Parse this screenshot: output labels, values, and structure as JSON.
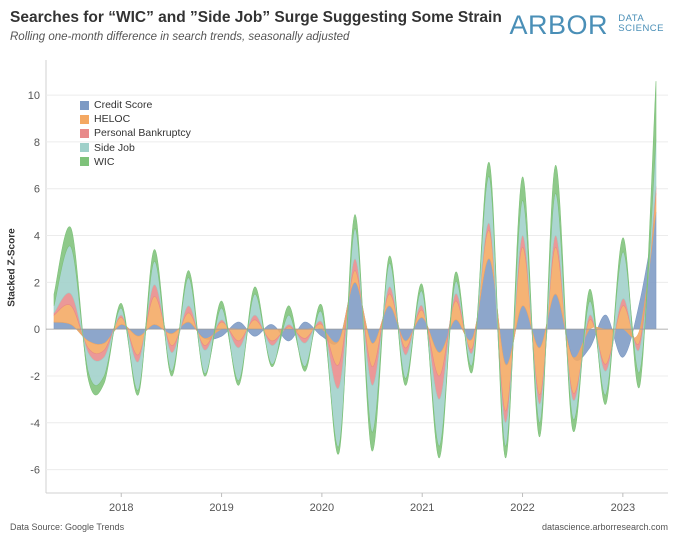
{
  "title": "Searches for “WIC” and  ”Side Job” Surge Suggesting Some Strain",
  "subtitle": "Rolling one-month difference in search trends, seasonally adjusted",
  "logo": {
    "main": "ARBOR",
    "sub_line1": "DATA",
    "sub_line2": "SCIENCE"
  },
  "footer": {
    "source": "Data Source: Google Trends",
    "url": "datascience.arborresearch.com"
  },
  "colors": {
    "credit_score": "#7d9ac4",
    "heloc": "#f4a862",
    "personal_bankruptcy": "#e88a8a",
    "side_job": "#9fd0c9",
    "wic": "#7ec27a"
  },
  "chart_data": {
    "type": "area",
    "stacked": true,
    "title": "Searches for “WIC” and  ”Side Job” Surge Suggesting Some Strain",
    "xlabel": "",
    "ylabel": "Stacked Z-Score",
    "xlim": [
      2017.25,
      2023.45
    ],
    "ylim": [
      -7,
      11.5
    ],
    "x_ticks": [
      2018,
      2019,
      2020,
      2021,
      2022,
      2023
    ],
    "x_tick_labels": [
      "2018",
      "2019",
      "2020",
      "2021",
      "2022",
      "2023"
    ],
    "y_ticks": [
      -6,
      -4,
      -2,
      0,
      2,
      4,
      6,
      8,
      10
    ],
    "y_tick_labels": [
      "-6",
      "-4",
      "-2",
      "0",
      "2",
      "4",
      "6",
      "8",
      "10"
    ],
    "grid": true,
    "legend_position": "top-left",
    "x": [
      2017.33,
      2017.5,
      2017.67,
      2017.83,
      2018.0,
      2018.17,
      2018.33,
      2018.5,
      2018.67,
      2018.83,
      2019.0,
      2019.17,
      2019.33,
      2019.5,
      2019.67,
      2019.83,
      2020.0,
      2020.17,
      2020.33,
      2020.5,
      2020.67,
      2020.83,
      2021.0,
      2021.17,
      2021.33,
      2021.5,
      2021.67,
      2021.83,
      2022.0,
      2022.17,
      2022.33,
      2022.5,
      2022.67,
      2022.83,
      2023.0,
      2023.17,
      2023.33
    ],
    "series": [
      {
        "name": "Credit Score",
        "values": [
          0.3,
          0.2,
          -0.5,
          -0.6,
          0.2,
          -0.3,
          0.2,
          -0.2,
          0.3,
          -0.4,
          -0.3,
          0.3,
          -0.3,
          0.2,
          -0.5,
          0.3,
          -0.3,
          -0.5,
          2.0,
          -0.6,
          1.0,
          -0.5,
          0.5,
          -1.0,
          0.4,
          -0.4,
          3.0,
          -1.5,
          1.0,
          -0.8,
          1.5,
          -1.2,
          -0.8,
          0.6,
          -1.2,
          1.2,
          5.0
        ]
      },
      {
        "name": "HELOC",
        "values": [
          0.3,
          0.8,
          -0.3,
          -0.3,
          0.3,
          -0.8,
          1.2,
          -0.5,
          0.4,
          -0.3,
          0.3,
          -0.5,
          0.4,
          -0.5,
          0.1,
          -0.4,
          0.2,
          -1.0,
          0.5,
          -1.0,
          0.5,
          -0.3,
          0.3,
          -1.0,
          0.8,
          -0.4,
          1.2,
          -2.0,
          2.5,
          -2.0,
          2.0,
          -1.5,
          0.4,
          -1.5,
          1.0,
          -0.5,
          0.8
        ]
      },
      {
        "name": "Personal Bankruptcy",
        "values": [
          0.1,
          0.5,
          -0.2,
          -0.3,
          0.1,
          -0.3,
          0.5,
          -0.3,
          0.3,
          -0.2,
          0.1,
          -0.3,
          0.2,
          -0.2,
          0.1,
          -0.2,
          0.1,
          -1.0,
          0.5,
          -0.8,
          0.3,
          -0.3,
          0.2,
          -1.0,
          0.3,
          -0.2,
          0.3,
          -0.5,
          0.5,
          -0.4,
          0.5,
          -0.3,
          0.2,
          -0.3,
          0.3,
          -0.3,
          0.3
        ]
      },
      {
        "name": "Side Job",
        "values": [
          0.3,
          2.0,
          -0.8,
          -0.8,
          0.3,
          -1.2,
          1.0,
          -0.8,
          1.2,
          -1.0,
          0.5,
          -1.4,
          0.9,
          -0.8,
          0.4,
          -1.0,
          0.4,
          -2.5,
          1.3,
          -2.0,
          1.0,
          -1.0,
          0.6,
          -2.0,
          0.5,
          -0.5,
          2.0,
          -1.0,
          1.5,
          -0.8,
          1.8,
          -0.8,
          0.6,
          -1.0,
          2.0,
          -1.0,
          2.0
        ]
      },
      {
        "name": "WIC",
        "values": [
          0.5,
          0.8,
          -0.3,
          -0.3,
          0.2,
          -0.2,
          0.5,
          -0.2,
          0.3,
          -0.1,
          0.3,
          -0.2,
          0.3,
          -0.1,
          0.4,
          -0.2,
          0.3,
          -0.3,
          0.6,
          -0.8,
          0.3,
          -0.3,
          0.3,
          -0.5,
          0.4,
          -0.3,
          0.6,
          -0.5,
          1.0,
          -0.6,
          1.2,
          -0.5,
          0.5,
          -0.4,
          0.6,
          -0.6,
          2.5
        ]
      }
    ]
  }
}
